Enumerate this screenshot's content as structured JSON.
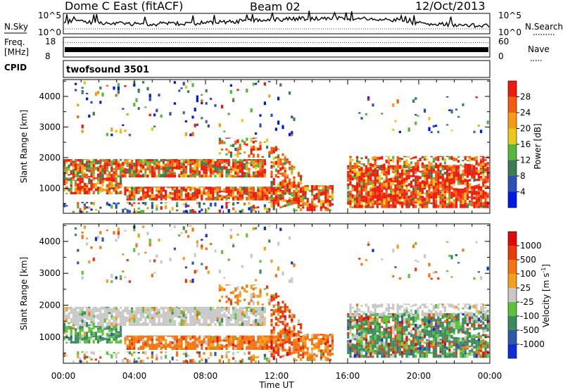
{
  "header": {
    "site": "Dome C East (fitACF)",
    "beam": "Beam 02",
    "date": "12/Oct/2013"
  },
  "panels": {
    "nsky_label": "N.Sky",
    "nsearch_label": "N.Search",
    "freq_label_1": "Freq.",
    "freq_label_2": "[MHz]",
    "nave_label": "Nave",
    "cpid_label": "CPID",
    "cpid_value": "twofsound 3501",
    "nsky_ticks": [
      "10^5",
      "10^0"
    ],
    "nsearch_ticks": [
      "10^5",
      "10^0"
    ],
    "freq_ticks": [
      "18",
      "8"
    ],
    "nave_ticks": [
      "60",
      "0"
    ]
  },
  "colors": {
    "power_scale": [
      "#0018e8",
      "#2f4fb8",
      "#3a7d55",
      "#55b83e",
      "#e8c81a",
      "#f79a14",
      "#f25d0f",
      "#ee1c0c"
    ],
    "velocity_scale": [
      "#0a2fd8",
      "#2d5aa8",
      "#3d8a5e",
      "#5cc43a",
      "#c8c8c8",
      "#f2a21a",
      "#f57412",
      "#ea3a0c",
      "#e00808"
    ]
  },
  "chart_data": [
    {
      "type": "heatmap",
      "name": "power",
      "xlabel": "",
      "ylabel": "Slant Range [km]",
      "yticks": [
        1000,
        2000,
        3000,
        4000
      ],
      "ylim": [
        180,
        4550
      ],
      "xlim_hours": [
        0,
        24
      ],
      "colorbar_label": "Power [dB]",
      "colorbar_ticks": [
        "4",
        "8",
        "12",
        "16",
        "20",
        "24",
        "28"
      ]
    },
    {
      "type": "heatmap",
      "name": "velocity",
      "xlabel": "Time UT",
      "ylabel": "Slant Range [km]",
      "yticks": [
        1000,
        2000,
        3000,
        4000
      ],
      "ylim": [
        180,
        4550
      ],
      "xlim_hours": [
        0,
        24
      ],
      "xticks": [
        "00:00",
        "04:00",
        "08:00",
        "12:00",
        "16:00",
        "20:00",
        "00:00"
      ],
      "colorbar_label": "Velocity [m s",
      "colorbar_label_sup": "-1",
      "colorbar_label_end": "]",
      "colorbar_ticks": [
        "1000",
        "500",
        "100",
        "25",
        "-25",
        "-100",
        "-500",
        "-1000"
      ]
    }
  ]
}
